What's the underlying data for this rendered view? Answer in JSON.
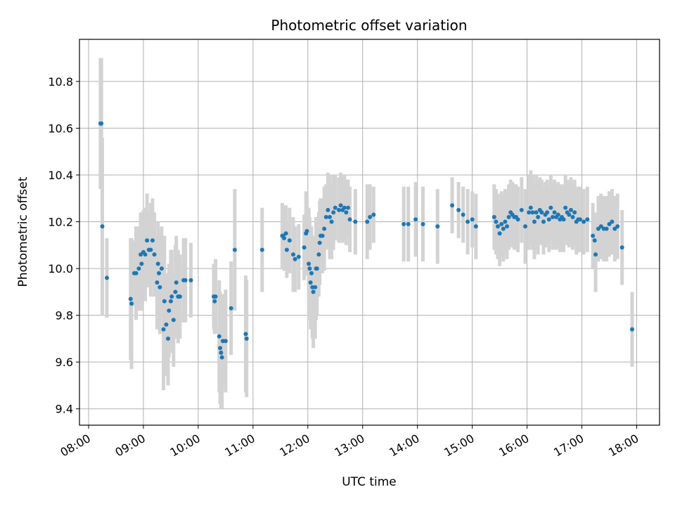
{
  "chart_data": {
    "type": "scatter",
    "title": "Photometric offset variation",
    "xlabel": "UTC time",
    "ylabel": "Photometric offset",
    "x_unit": "UTC hour of day",
    "xlim": [
      "07:50",
      "18:25"
    ],
    "ylim": [
      9.33,
      10.98
    ],
    "x_ticks": [
      "08:00",
      "09:00",
      "10:00",
      "11:00",
      "12:00",
      "13:00",
      "14:00",
      "15:00",
      "16:00",
      "17:00",
      "18:00"
    ],
    "y_ticks": [
      "9.4",
      "9.6",
      "9.8",
      "10.0",
      "10.2",
      "10.4",
      "10.6",
      "10.8"
    ],
    "grid": true,
    "marker_color": "#1f77b4",
    "errorbar_color": "#d3d3d3",
    "points": [
      {
        "x": "08:13",
        "y": 10.62,
        "err": 0.28
      },
      {
        "x": "08:14",
        "y": 10.62,
        "err": 0.28
      },
      {
        "x": "08:15",
        "y": 10.18,
        "err": 0.38
      },
      {
        "x": "08:20",
        "y": 9.96,
        "err": 0.17
      },
      {
        "x": "08:46",
        "y": 9.87,
        "err": 0.26
      },
      {
        "x": "08:47",
        "y": 9.85,
        "err": 0.28
      },
      {
        "x": "08:50",
        "y": 9.98,
        "err": 0.14
      },
      {
        "x": "08:52",
        "y": 9.98,
        "err": 0.2
      },
      {
        "x": "08:55",
        "y": 10.0,
        "err": 0.18
      },
      {
        "x": "08:57",
        "y": 10.06,
        "err": 0.18
      },
      {
        "x": "08:58",
        "y": 10.02,
        "err": 0.2
      },
      {
        "x": "09:00",
        "y": 10.07,
        "err": 0.18
      },
      {
        "x": "09:02",
        "y": 10.06,
        "err": 0.2
      },
      {
        "x": "09:04",
        "y": 10.12,
        "err": 0.2
      },
      {
        "x": "09:06",
        "y": 10.08,
        "err": 0.16
      },
      {
        "x": "09:08",
        "y": 10.08,
        "err": 0.2
      },
      {
        "x": "09:10",
        "y": 10.12,
        "err": 0.18
      },
      {
        "x": "09:12",
        "y": 10.06,
        "err": 0.18
      },
      {
        "x": "09:15",
        "y": 9.94,
        "err": 0.2
      },
      {
        "x": "09:16",
        "y": 10.02,
        "err": 0.18
      },
      {
        "x": "09:17",
        "y": 9.98,
        "err": 0.18
      },
      {
        "x": "09:18",
        "y": 9.92,
        "err": 0.2
      },
      {
        "x": "09:20",
        "y": 10.0,
        "err": 0.18
      },
      {
        "x": "09:22",
        "y": 9.74,
        "err": 0.26
      },
      {
        "x": "09:23",
        "y": 9.86,
        "err": 0.28
      },
      {
        "x": "09:25",
        "y": 9.76,
        "err": 0.22
      },
      {
        "x": "09:27",
        "y": 9.7,
        "err": 0.2
      },
      {
        "x": "09:28",
        "y": 9.82,
        "err": 0.2
      },
      {
        "x": "09:30",
        "y": 9.86,
        "err": 0.22
      },
      {
        "x": "09:31",
        "y": 9.88,
        "err": 0.2
      },
      {
        "x": "09:33",
        "y": 9.78,
        "err": 0.2
      },
      {
        "x": "09:35",
        "y": 9.9,
        "err": 0.2
      },
      {
        "x": "09:36",
        "y": 9.94,
        "err": 0.2
      },
      {
        "x": "09:38",
        "y": 9.88,
        "err": 0.2
      },
      {
        "x": "09:40",
        "y": 9.88,
        "err": 0.18
      },
      {
        "x": "09:44",
        "y": 9.95,
        "err": 0.18
      },
      {
        "x": "09:46",
        "y": 9.95,
        "err": 0.18
      },
      {
        "x": "09:52",
        "y": 9.95,
        "err": 0.16
      },
      {
        "x": "10:17",
        "y": 9.88,
        "err": 0.14
      },
      {
        "x": "10:18",
        "y": 9.86,
        "err": 0.14
      },
      {
        "x": "10:19",
        "y": 9.88,
        "err": 0.16
      },
      {
        "x": "10:23",
        "y": 9.71,
        "err": 0.24
      },
      {
        "x": "10:24",
        "y": 9.66,
        "err": 0.24
      },
      {
        "x": "10:25",
        "y": 9.64,
        "err": 0.24
      },
      {
        "x": "10:26",
        "y": 9.62,
        "err": 0.22
      },
      {
        "x": "10:27",
        "y": 9.69,
        "err": 0.2
      },
      {
        "x": "10:30",
        "y": 9.69,
        "err": 0.22
      },
      {
        "x": "10:36",
        "y": 9.83,
        "err": 0.2
      },
      {
        "x": "10:40",
        "y": 10.08,
        "err": 0.26
      },
      {
        "x": "10:52",
        "y": 9.72,
        "err": 0.25
      },
      {
        "x": "10:53",
        "y": 9.7,
        "err": 0.25
      },
      {
        "x": "11:10",
        "y": 10.08,
        "err": 0.18
      },
      {
        "x": "11:32",
        "y": 10.14,
        "err": 0.14
      },
      {
        "x": "11:33",
        "y": 10.14,
        "err": 0.12
      },
      {
        "x": "11:34",
        "y": 10.13,
        "err": 0.14
      },
      {
        "x": "11:36",
        "y": 10.15,
        "err": 0.12
      },
      {
        "x": "11:37",
        "y": 10.08,
        "err": 0.12
      },
      {
        "x": "11:40",
        "y": 10.12,
        "err": 0.14
      },
      {
        "x": "11:44",
        "y": 10.06,
        "err": 0.16
      },
      {
        "x": "11:46",
        "y": 10.04,
        "err": 0.14
      },
      {
        "x": "11:50",
        "y": 10.05,
        "err": 0.14
      },
      {
        "x": "11:56",
        "y": 10.09,
        "err": 0.14
      },
      {
        "x": "11:58",
        "y": 10.15,
        "err": 0.18
      },
      {
        "x": "11:59",
        "y": 10.16,
        "err": 0.16
      },
      {
        "x": "12:01",
        "y": 10.02,
        "err": 0.24
      },
      {
        "x": "12:02",
        "y": 10.0,
        "err": 0.22
      },
      {
        "x": "12:03",
        "y": 9.94,
        "err": 0.2
      },
      {
        "x": "12:04",
        "y": 9.98,
        "err": 0.2
      },
      {
        "x": "12:05",
        "y": 9.92,
        "err": 0.22
      },
      {
        "x": "12:06",
        "y": 9.9,
        "err": 0.24
      },
      {
        "x": "12:08",
        "y": 9.92,
        "err": 0.22
      },
      {
        "x": "12:09",
        "y": 10.0,
        "err": 0.22
      },
      {
        "x": "12:10",
        "y": 10.0,
        "err": 0.2
      },
      {
        "x": "12:12",
        "y": 10.06,
        "err": 0.18
      },
      {
        "x": "12:13",
        "y": 10.11,
        "err": 0.18
      },
      {
        "x": "12:14",
        "y": 10.14,
        "err": 0.16
      },
      {
        "x": "12:16",
        "y": 10.14,
        "err": 0.16
      },
      {
        "x": "12:18",
        "y": 10.17,
        "err": 0.18
      },
      {
        "x": "12:20",
        "y": 10.22,
        "err": 0.14
      },
      {
        "x": "12:22",
        "y": 10.25,
        "err": 0.16
      },
      {
        "x": "12:24",
        "y": 10.22,
        "err": 0.18
      },
      {
        "x": "12:26",
        "y": 10.2,
        "err": 0.16
      },
      {
        "x": "12:28",
        "y": 10.24,
        "err": 0.16
      },
      {
        "x": "12:30",
        "y": 10.26,
        "err": 0.14
      },
      {
        "x": "12:34",
        "y": 10.25,
        "err": 0.14
      },
      {
        "x": "12:36",
        "y": 10.27,
        "err": 0.14
      },
      {
        "x": "12:38",
        "y": 10.25,
        "err": 0.14
      },
      {
        "x": "12:40",
        "y": 10.26,
        "err": 0.14
      },
      {
        "x": "12:42",
        "y": 10.24,
        "err": 0.14
      },
      {
        "x": "12:44",
        "y": 10.26,
        "err": 0.12
      },
      {
        "x": "12:46",
        "y": 10.21,
        "err": 0.14
      },
      {
        "x": "12:52",
        "y": 10.2,
        "err": 0.14
      },
      {
        "x": "13:05",
        "y": 10.2,
        "err": 0.16
      },
      {
        "x": "13:08",
        "y": 10.22,
        "err": 0.14
      },
      {
        "x": "13:12",
        "y": 10.23,
        "err": 0.12
      },
      {
        "x": "13:45",
        "y": 10.19,
        "err": 0.16
      },
      {
        "x": "13:50",
        "y": 10.19,
        "err": 0.16
      },
      {
        "x": "13:58",
        "y": 10.21,
        "err": 0.16
      },
      {
        "x": "14:06",
        "y": 10.19,
        "err": 0.16
      },
      {
        "x": "14:22",
        "y": 10.18,
        "err": 0.16
      },
      {
        "x": "14:38",
        "y": 10.27,
        "err": 0.12
      },
      {
        "x": "14:45",
        "y": 10.25,
        "err": 0.12
      },
      {
        "x": "14:50",
        "y": 10.23,
        "err": 0.12
      },
      {
        "x": "14:55",
        "y": 10.2,
        "err": 0.14
      },
      {
        "x": "15:00",
        "y": 10.21,
        "err": 0.12
      },
      {
        "x": "15:04",
        "y": 10.18,
        "err": 0.14
      },
      {
        "x": "15:24",
        "y": 10.22,
        "err": 0.14
      },
      {
        "x": "15:26",
        "y": 10.2,
        "err": 0.14
      },
      {
        "x": "15:28",
        "y": 10.18,
        "err": 0.14
      },
      {
        "x": "15:30",
        "y": 10.15,
        "err": 0.14
      },
      {
        "x": "15:32",
        "y": 10.19,
        "err": 0.14
      },
      {
        "x": "15:34",
        "y": 10.17,
        "err": 0.14
      },
      {
        "x": "15:36",
        "y": 10.2,
        "err": 0.14
      },
      {
        "x": "15:38",
        "y": 10.18,
        "err": 0.14
      },
      {
        "x": "15:40",
        "y": 10.22,
        "err": 0.14
      },
      {
        "x": "15:42",
        "y": 10.24,
        "err": 0.14
      },
      {
        "x": "15:44",
        "y": 10.23,
        "err": 0.14
      },
      {
        "x": "15:46",
        "y": 10.22,
        "err": 0.14
      },
      {
        "x": "15:48",
        "y": 10.22,
        "err": 0.14
      },
      {
        "x": "15:50",
        "y": 10.21,
        "err": 0.14
      },
      {
        "x": "15:54",
        "y": 10.25,
        "err": 0.14
      },
      {
        "x": "15:58",
        "y": 10.18,
        "err": 0.16
      },
      {
        "x": "16:02",
        "y": 10.24,
        "err": 0.16
      },
      {
        "x": "16:04",
        "y": 10.26,
        "err": 0.16
      },
      {
        "x": "16:06",
        "y": 10.24,
        "err": 0.16
      },
      {
        "x": "16:08",
        "y": 10.2,
        "err": 0.16
      },
      {
        "x": "16:10",
        "y": 10.24,
        "err": 0.16
      },
      {
        "x": "16:12",
        "y": 10.22,
        "err": 0.16
      },
      {
        "x": "16:14",
        "y": 10.25,
        "err": 0.14
      },
      {
        "x": "16:16",
        "y": 10.24,
        "err": 0.14
      },
      {
        "x": "16:18",
        "y": 10.2,
        "err": 0.14
      },
      {
        "x": "16:20",
        "y": 10.23,
        "err": 0.14
      },
      {
        "x": "16:22",
        "y": 10.24,
        "err": 0.14
      },
      {
        "x": "16:24",
        "y": 10.21,
        "err": 0.14
      },
      {
        "x": "16:26",
        "y": 10.26,
        "err": 0.14
      },
      {
        "x": "16:28",
        "y": 10.22,
        "err": 0.14
      },
      {
        "x": "16:30",
        "y": 10.24,
        "err": 0.14
      },
      {
        "x": "16:32",
        "y": 10.22,
        "err": 0.14
      },
      {
        "x": "16:34",
        "y": 10.23,
        "err": 0.14
      },
      {
        "x": "16:36",
        "y": 10.21,
        "err": 0.14
      },
      {
        "x": "16:38",
        "y": 10.22,
        "err": 0.14
      },
      {
        "x": "16:40",
        "y": 10.21,
        "err": 0.14
      },
      {
        "x": "16:42",
        "y": 10.26,
        "err": 0.14
      },
      {
        "x": "16:44",
        "y": 10.24,
        "err": 0.14
      },
      {
        "x": "16:46",
        "y": 10.23,
        "err": 0.14
      },
      {
        "x": "16:48",
        "y": 10.25,
        "err": 0.14
      },
      {
        "x": "16:50",
        "y": 10.22,
        "err": 0.14
      },
      {
        "x": "16:52",
        "y": 10.24,
        "err": 0.14
      },
      {
        "x": "16:54",
        "y": 10.2,
        "err": 0.14
      },
      {
        "x": "16:56",
        "y": 10.21,
        "err": 0.14
      },
      {
        "x": "16:58",
        "y": 10.21,
        "err": 0.14
      },
      {
        "x": "17:02",
        "y": 10.2,
        "err": 0.14
      },
      {
        "x": "17:06",
        "y": 10.21,
        "err": 0.14
      },
      {
        "x": "17:12",
        "y": 10.14,
        "err": 0.14
      },
      {
        "x": "17:14",
        "y": 10.12,
        "err": 0.12
      },
      {
        "x": "17:15",
        "y": 10.06,
        "err": 0.16
      },
      {
        "x": "17:18",
        "y": 10.17,
        "err": 0.14
      },
      {
        "x": "17:21",
        "y": 10.18,
        "err": 0.14
      },
      {
        "x": "17:24",
        "y": 10.17,
        "err": 0.14
      },
      {
        "x": "17:27",
        "y": 10.17,
        "err": 0.14
      },
      {
        "x": "17:30",
        "y": 10.19,
        "err": 0.14
      },
      {
        "x": "17:33",
        "y": 10.2,
        "err": 0.14
      },
      {
        "x": "17:36",
        "y": 10.17,
        "err": 0.14
      },
      {
        "x": "17:39",
        "y": 10.18,
        "err": 0.14
      },
      {
        "x": "17:44",
        "y": 10.09,
        "err": 0.16
      },
      {
        "x": "17:55",
        "y": 9.74,
        "err": 0.16
      }
    ]
  }
}
